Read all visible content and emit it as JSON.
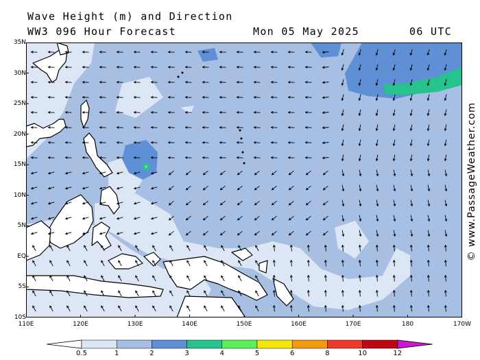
{
  "header": {
    "title": "Wave Height (m) and Direction",
    "model": "WW3 096 Hour Forecast",
    "date": "Mon 05 May 2025",
    "time": "06 UTC"
  },
  "credit": "© www.PassageWeather.com",
  "axes": {
    "lat_labels": [
      "35N",
      "30N",
      "25N",
      "20N",
      "15N",
      "10N",
      "5N",
      "EQ",
      "5S",
      "10S"
    ],
    "lon_labels": [
      "110E",
      "120E",
      "130E",
      "140E",
      "150E",
      "160E",
      "170E",
      "180",
      "170W"
    ]
  },
  "legend": {
    "ticks": [
      "0.5",
      "1",
      "2",
      "3",
      "4",
      "5",
      "6",
      "8",
      "10",
      "12"
    ],
    "colors": [
      "#ffffff",
      "#dde6f4",
      "#a6bfe3",
      "#5f8fd5",
      "#27c38f",
      "#5cf05a",
      "#f4e70a",
      "#f59a0d",
      "#ee3b2c",
      "#bd0714",
      "#c71ad1"
    ]
  },
  "colors": {
    "land": "#ffffff",
    "coastline": "#000000",
    "wave_low": "#dde6f4",
    "wave_mid": "#a6bfe3",
    "wave_high": "#5f8fd5",
    "wave_peak": "#27c38f"
  }
}
